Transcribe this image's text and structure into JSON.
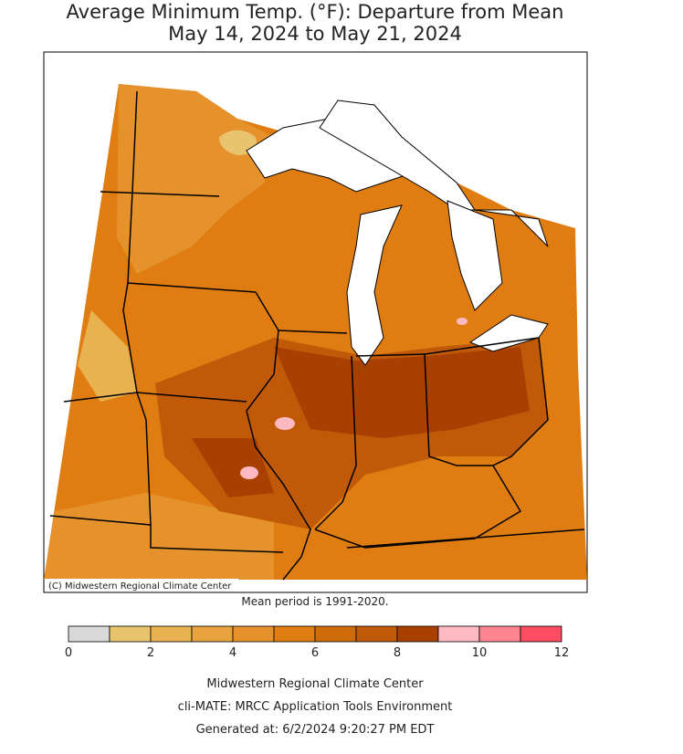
{
  "title": [
    "Average Minimum Temp. (°F): Departure from Mean",
    "May 14, 2024 to May 21, 2024"
  ],
  "copyright": "(C) Midwestern Regional Climate Center",
  "note": "Mean period is 1991-2020.",
  "legend": {
    "bins": [
      0,
      1,
      2,
      3,
      4,
      5,
      6,
      7,
      8,
      9,
      10,
      11,
      12
    ],
    "colors": [
      "#d9d9d9",
      "#e9c46e",
      "#e8b251",
      "#e8a23e",
      "#e6922c",
      "#e07d12",
      "#d06b09",
      "#c05a08",
      "#a84002",
      "#ffb9c2",
      "#ff8592",
      "#ff4d62"
    ],
    "ticks": [
      0,
      2,
      4,
      6,
      8,
      10,
      12
    ]
  },
  "footer": [
    "Midwestern Regional Climate Center",
    "cli-MATE: MRCC Application Tools Environment",
    "Generated at: 6/2/2024 9:20:27 PM EDT"
  ]
}
